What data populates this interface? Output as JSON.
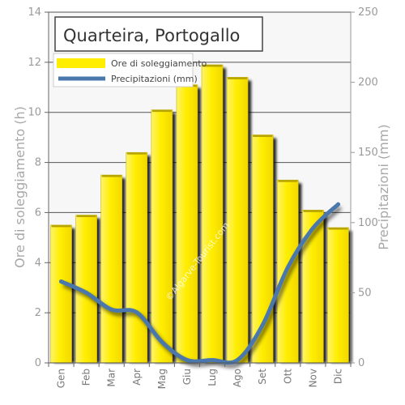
{
  "chart_data": {
    "type": "bar",
    "title": "Quarteira, Portogallo",
    "categories": [
      "Gen",
      "Feb",
      "Mar",
      "Apr",
      "Mag",
      "Giu",
      "Lug",
      "Ago",
      "Set",
      "Ott",
      "Nov",
      "Dic"
    ],
    "series": [
      {
        "name": "Ore di soleggiamento",
        "type": "bar",
        "axis": "left",
        "values": [
          5.5,
          5.9,
          7.5,
          8.4,
          10.1,
          11.1,
          11.9,
          11.4,
          9.1,
          7.3,
          6.1,
          5.4
        ]
      },
      {
        "name": "Precipitazioni (mm)",
        "type": "line",
        "axis": "right",
        "values": [
          58,
          50,
          38,
          36,
          15,
          2,
          2,
          2,
          27,
          68,
          96,
          113
        ]
      }
    ],
    "ylabel": "Ore di soleggiamento (h)",
    "ylim": [
      0,
      14
    ],
    "yticks": [
      0,
      2,
      4,
      6,
      8,
      10,
      12,
      14
    ],
    "y2label": "Precipitazioni (mm)",
    "y2lim": [
      0,
      250
    ],
    "y2ticks": [
      0,
      50,
      100,
      150,
      200,
      250
    ],
    "grid": true,
    "legend_position": "top-left",
    "colors": {
      "bar": "#ffee00",
      "bar_edge": "#c8b400",
      "line": "#4a78ad",
      "plot_bg": "#f7f7f7",
      "grid": "#555555"
    },
    "watermark": "©Algarve-Tourist.com"
  }
}
